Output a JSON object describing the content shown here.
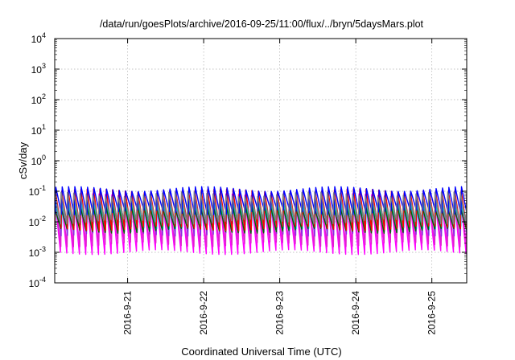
{
  "chart_data": {
    "type": "line",
    "title": "/data/run/goesPlots/archive/2016-09-25/11:00/flux/../bryn/5daysMars.plot",
    "xlabel": "Coordinated Universal Time (UTC)",
    "ylabel": "cSv/day",
    "y_scale": "log",
    "grid": true,
    "legend": "none",
    "xlim": [
      "2016-09-20T01:00",
      "2016-09-25T11:00"
    ],
    "ylim": [
      0.0001,
      10000
    ],
    "x_ticks": [
      {
        "date": "2016-09-21T00:00",
        "label": "2016-9-21"
      },
      {
        "date": "2016-09-22T00:00",
        "label": "2016-9-22"
      },
      {
        "date": "2016-09-23T00:00",
        "label": "2016-9-23"
      },
      {
        "date": "2016-09-24T00:00",
        "label": "2016-9-24"
      },
      {
        "date": "2016-09-25T00:00",
        "label": "2016-9-25"
      }
    ],
    "y_ticks": [
      {
        "value": 0.0001,
        "base": "10",
        "exp": "-4"
      },
      {
        "value": 0.001,
        "base": "10",
        "exp": "-3"
      },
      {
        "value": 0.01,
        "base": "10",
        "exp": "-2"
      },
      {
        "value": 0.1,
        "base": "10",
        "exp": "-1"
      },
      {
        "value": 1,
        "base": "10",
        "exp": "0"
      },
      {
        "value": 10,
        "base": "10",
        "exp": "1"
      },
      {
        "value": 100,
        "base": "10",
        "exp": "2"
      },
      {
        "value": 1000,
        "base": "10",
        "exp": "3"
      },
      {
        "value": 10000,
        "base": "10",
        "exp": "4"
      }
    ],
    "period_hours": 2,
    "series": [
      {
        "color": "#ff00ff",
        "peak": 0.07,
        "trough": 0.001
      },
      {
        "color": "#e020d0",
        "peak": 0.06,
        "trough": 0.0018
      },
      {
        "color": "#8a2be2",
        "peak": 0.09,
        "trough": 0.004
      },
      {
        "color": "#00bfff",
        "peak": 0.05,
        "trough": 0.007
      },
      {
        "color": "#20b2aa",
        "peak": 0.045,
        "trough": 0.009
      },
      {
        "color": "#006400",
        "peak": 0.03,
        "trough": 0.005
      },
      {
        "color": "#ff0000",
        "peak": 0.1,
        "trough": 0.006
      },
      {
        "color": "#0000ff",
        "peak": 0.12,
        "trough": 0.02
      },
      {
        "color": "#808080",
        "peak": 0.08,
        "trough": 0.01
      }
    ]
  }
}
